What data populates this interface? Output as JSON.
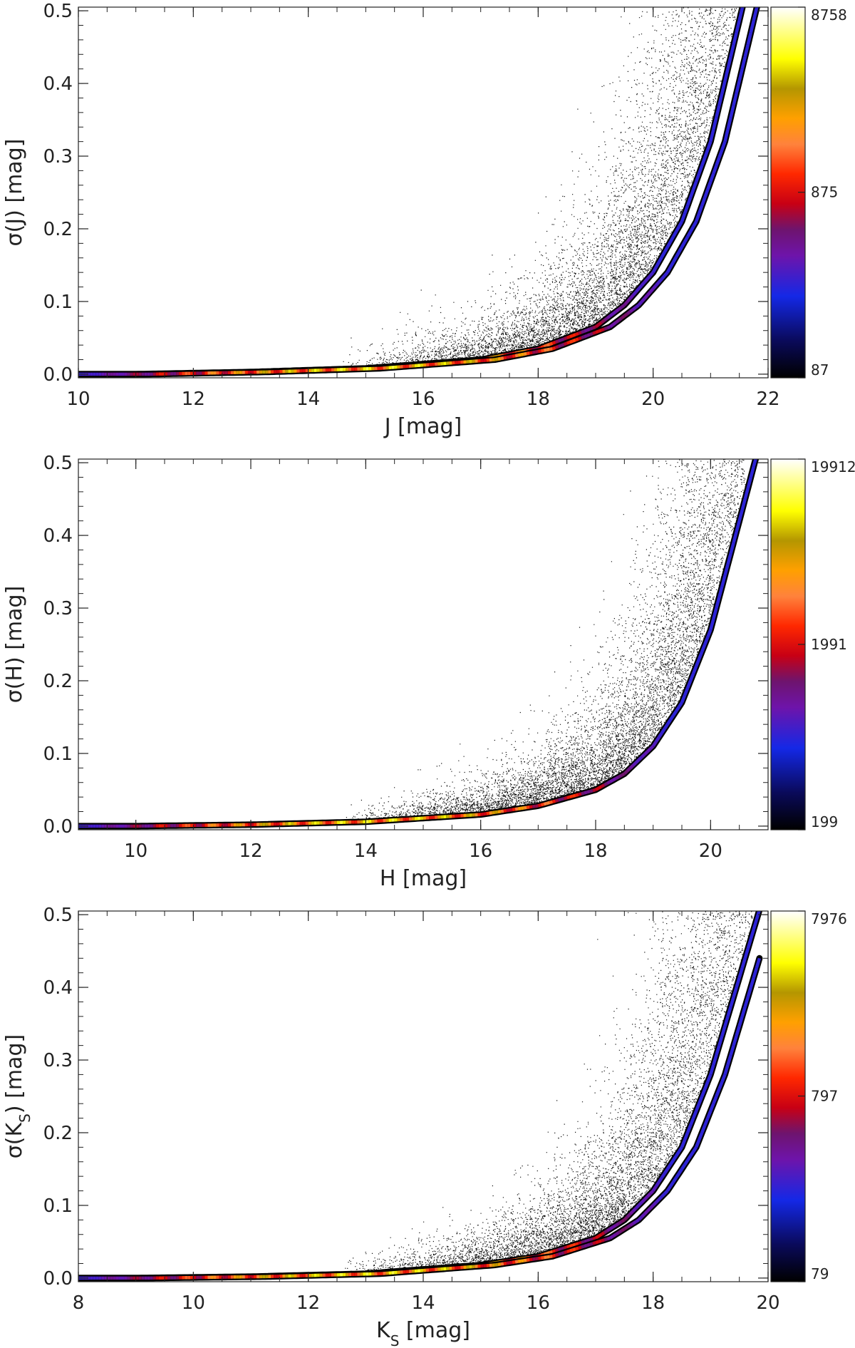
{
  "chart_data": [
    {
      "type": "scatter",
      "subtype": "density-scatter",
      "xlabel": "J [mag]",
      "ylabel": "σ(J) [mag]",
      "xlim": [
        10,
        22
      ],
      "ylim": [
        -0.005,
        0.505
      ],
      "xticks": [
        10,
        12,
        14,
        16,
        18,
        20,
        22
      ],
      "yticks": [
        0.0,
        0.1,
        0.2,
        0.3,
        0.4,
        0.5
      ],
      "ytick_labels": [
        "0.0",
        "0.1",
        "0.2",
        "0.3",
        "0.4",
        "0.5"
      ],
      "colorbar": {
        "scale": "log",
        "tick_values": [
          87,
          875,
          8758
        ],
        "tick_labels": [
          "87",
          "875",
          "8758"
        ]
      },
      "series": [
        {
          "x": [
            11,
            13,
            15,
            17,
            18,
            19,
            19.5,
            20,
            20.5,
            21,
            21.3
          ],
          "values": [
            0.0,
            0.003,
            0.008,
            0.02,
            0.035,
            0.065,
            0.095,
            0.14,
            0.21,
            0.32,
            0.42
          ]
        },
        {
          "x": [
            11,
            13,
            15,
            17,
            18,
            19,
            19.5,
            20,
            20.5,
            21,
            21.3
          ],
          "values": [
            0.0,
            0.003,
            0.008,
            0.02,
            0.035,
            0.065,
            0.095,
            0.14,
            0.21,
            0.32,
            0.42
          ]
        }
      ],
      "scatter_extent": {
        "x": [
          14.5,
          21.8
        ]
      }
    },
    {
      "type": "scatter",
      "subtype": "density-scatter",
      "xlabel": "H [mag]",
      "ylabel": "σ(H) [mag]",
      "xlim": [
        9,
        21
      ],
      "ylim": [
        -0.005,
        0.505
      ],
      "xticks": [
        10,
        12,
        14,
        16,
        18,
        20
      ],
      "yticks": [
        0.0,
        0.1,
        0.2,
        0.3,
        0.4,
        0.5
      ],
      "ytick_labels": [
        "0.0",
        "0.1",
        "0.2",
        "0.3",
        "0.4",
        "0.5"
      ],
      "colorbar": {
        "scale": "log",
        "tick_values": [
          199,
          1991,
          19912
        ],
        "tick_labels": [
          "199",
          "1991",
          "19912"
        ]
      },
      "series": [
        {
          "x": [
            10,
            12,
            14,
            16,
            17,
            18,
            18.5,
            19,
            19.5,
            20,
            20.3
          ],
          "values": [
            0.0,
            0.002,
            0.006,
            0.016,
            0.028,
            0.05,
            0.072,
            0.11,
            0.17,
            0.27,
            0.36
          ]
        }
      ],
      "scatter_extent": {
        "x": [
          13.5,
          20.6
        ]
      }
    },
    {
      "type": "scatter",
      "subtype": "density-scatter",
      "xlabel": "K<sub>S</sub> [mag]",
      "ylabel": "σ(K<sub>S</sub>) [mag]",
      "xlim": [
        8,
        20
      ],
      "ylim": [
        -0.005,
        0.505
      ],
      "xticks": [
        8,
        10,
        12,
        14,
        16,
        18,
        20
      ],
      "yticks": [
        0.0,
        0.1,
        0.2,
        0.3,
        0.4,
        0.5
      ],
      "ytick_labels": [
        "0.0",
        "0.1",
        "0.2",
        "0.3",
        "0.4",
        "0.5"
      ],
      "colorbar": {
        "scale": "log",
        "tick_values": [
          79,
          797,
          7976
        ],
        "tick_labels": [
          "79",
          "797",
          "7976"
        ]
      },
      "series": [
        {
          "x": [
            9,
            11,
            13,
            15,
            16,
            17,
            17.5,
            18,
            18.5,
            19,
            19.3
          ],
          "values": [
            0.0,
            0.002,
            0.006,
            0.018,
            0.03,
            0.055,
            0.08,
            0.12,
            0.18,
            0.28,
            0.36
          ]
        },
        {
          "x": [
            9,
            11,
            13,
            15,
            16,
            17,
            17.5,
            18,
            18.5,
            19,
            19.3
          ],
          "values": [
            0.0,
            0.002,
            0.006,
            0.018,
            0.03,
            0.055,
            0.08,
            0.12,
            0.18,
            0.28,
            0.36
          ]
        }
      ],
      "scatter_extent": {
        "x": [
          12.5,
          19.9
        ]
      }
    }
  ]
}
